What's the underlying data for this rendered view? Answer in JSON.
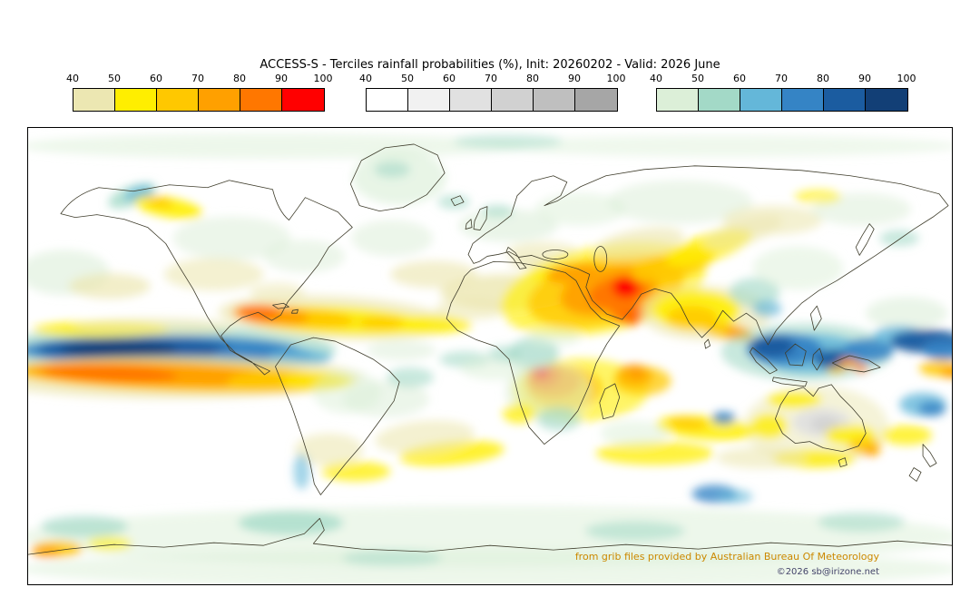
{
  "title": "ACCESS-S - Terciles rainfall probabilities (%), Init: 20260202 - Valid: 2026 June",
  "legends": [
    {
      "key": "d",
      "name": "below-normal-dry-scale",
      "ticks": [
        "40",
        "50",
        "60",
        "70",
        "80",
        "90",
        "100"
      ],
      "colors": [
        "#ece7b2",
        "#ffee00",
        "#ffc800",
        "#ffa000",
        "#ff7700",
        "#ff0000"
      ]
    },
    {
      "key": "n",
      "name": "near-normal-gray-scale",
      "ticks": [
        "40",
        "50",
        "60",
        "70",
        "80",
        "90",
        "100"
      ],
      "colors": [
        "#ffffff",
        "#f1f1f1",
        "#e1e1e1",
        "#d1d1d1",
        "#bfbfbf",
        "#a6a6a6"
      ]
    },
    {
      "key": "w",
      "name": "above-normal-wet-scale",
      "ticks": [
        "40",
        "50",
        "60",
        "70",
        "80",
        "90",
        "100"
      ],
      "colors": [
        "#dcefd8",
        "#a3d9c7",
        "#64b7d9",
        "#3584c5",
        "#1b5ca0",
        "#123f76"
      ]
    }
  ],
  "map": {
    "background": "#ffffff",
    "border_color": "#000000",
    "coastline_color": "#3f3d2c",
    "blobs": [
      [
        "w1",
        300,
        160,
        280,
        14,
        0,
        0.5
      ],
      [
        "w1",
        800,
        160,
        260,
        12,
        0,
        0.45
      ],
      [
        "w2",
        560,
        155,
        60,
        8,
        0,
        0.5
      ],
      [
        "w2",
        180,
        386,
        190,
        28,
        0,
        0.7
      ],
      [
        "w4",
        175,
        386,
        155,
        17,
        0,
        0.9
      ],
      [
        "w5",
        150,
        385,
        110,
        12,
        0,
        1
      ],
      [
        "w6",
        130,
        385,
        65,
        8,
        0,
        1
      ],
      [
        "w4",
        290,
        391,
        55,
        11,
        0,
        0.9
      ],
      [
        "w3",
        330,
        394,
        35,
        9,
        0,
        0.8
      ],
      [
        "d1",
        190,
        416,
        210,
        24,
        0,
        0.7
      ],
      [
        "d3",
        195,
        415,
        185,
        17,
        2,
        0.9
      ],
      [
        "d4",
        170,
        413,
        140,
        12,
        2,
        1
      ],
      [
        "d5",
        120,
        412,
        75,
        9,
        2,
        1
      ],
      [
        "d3",
        295,
        421,
        45,
        11,
        0,
        0.9
      ],
      [
        "d2",
        350,
        420,
        40,
        10,
        0,
        0.7
      ],
      [
        "d2",
        110,
        363,
        75,
        9,
        0,
        0.8
      ],
      [
        "d1",
        170,
        360,
        90,
        10,
        0,
        0.6
      ],
      [
        "w1",
        70,
        300,
        50,
        25,
        0,
        0.6
      ],
      [
        "d1",
        120,
        315,
        45,
        14,
        0,
        0.7
      ],
      [
        "w2",
        145,
        215,
        28,
        11,
        -20,
        0.8
      ],
      [
        "w3",
        152,
        212,
        16,
        7,
        -20,
        0.8
      ],
      [
        "d2",
        185,
        228,
        38,
        11,
        10,
        0.9
      ],
      [
        "d3",
        175,
        222,
        15,
        6,
        10,
        0.8
      ],
      [
        "w1",
        255,
        262,
        65,
        24,
        0,
        0.55
      ],
      [
        "d1",
        235,
        302,
        55,
        18,
        0,
        0.6
      ],
      [
        "w1",
        335,
        282,
        45,
        18,
        0,
        0.55
      ],
      [
        "d1",
        305,
        322,
        30,
        11,
        0,
        0.55
      ],
      [
        "w1",
        440,
        195,
        52,
        30,
        0,
        0.65
      ],
      [
        "w2",
        432,
        186,
        20,
        9,
        0,
        0.6
      ],
      [
        "w1",
        432,
        262,
        45,
        20,
        0,
        0.55
      ],
      [
        "d1",
        478,
        302,
        48,
        15,
        0,
        0.65
      ],
      [
        "w2",
        500,
        222,
        18,
        8,
        0,
        0.6
      ],
      [
        "d1",
        370,
        350,
        130,
        24,
        3,
        0.7
      ],
      [
        "d2",
        370,
        353,
        105,
        15,
        3,
        0.9
      ],
      [
        "d3",
        330,
        350,
        60,
        11,
        4,
        0.95
      ],
      [
        "d4",
        298,
        347,
        42,
        11,
        5,
        1
      ],
      [
        "d5",
        285,
        345,
        22,
        8,
        5,
        1
      ],
      [
        "d2",
        465,
        358,
        55,
        10,
        0,
        0.85
      ],
      [
        "d3",
        420,
        356,
        25,
        7,
        0,
        0.8
      ],
      [
        "w1",
        560,
        248,
        55,
        18,
        0,
        0.6
      ],
      [
        "w2",
        548,
        232,
        18,
        7,
        0,
        0.6
      ],
      [
        "d1",
        598,
        278,
        40,
        12,
        0,
        0.6
      ],
      [
        "d1",
        590,
        290,
        28,
        7,
        0,
        0.7
      ],
      [
        "d1",
        560,
        322,
        75,
        20,
        0,
        0.8
      ],
      [
        "d2",
        612,
        302,
        28,
        8,
        0,
        0.8
      ],
      [
        "d1",
        520,
        340,
        40,
        12,
        0,
        0.6
      ],
      [
        "d2",
        665,
        318,
        115,
        48,
        -12,
        0.65
      ],
      [
        "d3",
        668,
        320,
        88,
        38,
        -12,
        0.8
      ],
      [
        "d4",
        672,
        320,
        55,
        26,
        -12,
        0.95
      ],
      [
        "d5",
        682,
        322,
        34,
        17,
        -12,
        1
      ],
      [
        "d6",
        690,
        316,
        15,
        12,
        0,
        1
      ],
      [
        "d6",
        696,
        349,
        11,
        9,
        0,
        1
      ],
      [
        "d5",
        692,
        344,
        20,
        13,
        0,
        0.9
      ],
      [
        "d4",
        632,
        301,
        30,
        11,
        -5,
        0.9
      ],
      [
        "d3",
        742,
        292,
        48,
        15,
        -15,
        0.85
      ],
      [
        "d2",
        782,
        272,
        50,
        15,
        -18,
        0.8
      ],
      [
        "d1",
        820,
        255,
        45,
        14,
        -18,
        0.6
      ],
      [
        "d1",
        705,
        268,
        50,
        16,
        -10,
        0.65
      ],
      [
        "d2",
        640,
        430,
        75,
        35,
        0,
        0.6
      ],
      [
        "d3",
        622,
        428,
        42,
        24,
        0,
        0.8
      ],
      [
        "d4",
        610,
        420,
        30,
        18,
        0,
        0.95
      ],
      [
        "d5",
        600,
        414,
        18,
        13,
        0,
        1
      ],
      [
        "d6",
        597,
        411,
        8,
        6,
        0,
        1
      ],
      [
        "d5",
        700,
        414,
        20,
        12,
        0,
        0.95
      ],
      [
        "d6",
        702,
        412,
        8,
        5,
        0,
        1
      ],
      [
        "d3",
        708,
        420,
        32,
        16,
        0,
        0.75
      ],
      [
        "w2",
        588,
        390,
        28,
        18,
        0,
        0.7
      ],
      [
        "w1",
        604,
        432,
        48,
        32,
        0,
        0.55
      ],
      [
        "w2",
        616,
        462,
        24,
        13,
        0,
        0.65
      ],
      [
        "d2",
        572,
        456,
        18,
        11,
        0,
        0.75
      ],
      [
        "d1",
        778,
        345,
        72,
        30,
        0,
        0.65
      ],
      [
        "d2",
        768,
        342,
        48,
        22,
        0,
        0.9
      ],
      [
        "d3",
        763,
        350,
        28,
        13,
        0,
        0.85
      ],
      [
        "d3",
        802,
        365,
        28,
        9,
        10,
        0.85
      ],
      [
        "d4",
        815,
        368,
        16,
        7,
        10,
        0.9
      ],
      [
        "w2",
        832,
        322,
        28,
        16,
        0,
        0.65
      ],
      [
        "w3",
        846,
        340,
        16,
        9,
        0,
        0.7
      ],
      [
        "w1",
        880,
        295,
        50,
        24,
        0,
        0.5
      ],
      [
        "w2",
        890,
        388,
        95,
        32,
        0,
        0.6
      ],
      [
        "w3",
        895,
        390,
        60,
        22,
        0,
        0.85
      ],
      [
        "w4",
        865,
        385,
        42,
        18,
        0,
        0.95
      ],
      [
        "w5",
        852,
        382,
        25,
        12,
        0,
        1
      ],
      [
        "w5",
        920,
        396,
        22,
        11,
        0,
        0.95
      ],
      [
        "w4",
        958,
        386,
        28,
        13,
        0,
        0.9
      ],
      [
        "d4",
        936,
        400,
        11,
        5,
        0,
        0.95
      ],
      [
        "d5",
        950,
        406,
        7,
        4,
        0,
        0.95
      ],
      [
        "d3",
        922,
        408,
        10,
        4,
        0,
        0.8
      ],
      [
        "w1",
        1000,
        345,
        45,
        18,
        0,
        0.6
      ],
      [
        "w3",
        992,
        370,
        28,
        11,
        0,
        0.85
      ],
      [
        "w5",
        1022,
        376,
        40,
        13,
        0,
        0.95
      ],
      [
        "w4",
        1042,
        386,
        25,
        11,
        0,
        0.9
      ],
      [
        "d3",
        1038,
        406,
        24,
        9,
        0,
        0.85
      ],
      [
        "d4",
        1050,
        411,
        13,
        6,
        0,
        0.9
      ],
      [
        "d1",
        900,
        470,
        80,
        45,
        0,
        0.5
      ],
      [
        "n3",
        906,
        466,
        32,
        16,
        0,
        0.9
      ],
      [
        "n4",
        910,
        468,
        16,
        9,
        0,
        0.85
      ],
      [
        "d2",
        876,
        441,
        30,
        9,
        0,
        0.85
      ],
      [
        "d2",
        848,
        470,
        20,
        14,
        0,
        0.8
      ],
      [
        "d2",
        938,
        480,
        28,
        11,
        0,
        0.85
      ],
      [
        "d3",
        954,
        492,
        18,
        9,
        0,
        0.9
      ],
      [
        "d4",
        961,
        498,
        9,
        5,
        0,
        0.9
      ],
      [
        "d2",
        898,
        506,
        45,
        10,
        0,
        0.8
      ],
      [
        "d2",
        1000,
        480,
        28,
        11,
        0,
        0.75
      ],
      [
        "w3",
        1018,
        446,
        26,
        13,
        0,
        0.8
      ],
      [
        "w4",
        1028,
        451,
        15,
        8,
        0,
        0.85
      ],
      [
        "d2",
        778,
        472,
        55,
        13,
        5,
        0.85
      ],
      [
        "d3",
        758,
        467,
        22,
        7,
        5,
        0.8
      ],
      [
        "w4",
        798,
        461,
        13,
        7,
        0,
        0.85
      ],
      [
        "d2",
        722,
        500,
        65,
        13,
        0,
        0.75
      ],
      [
        "w1",
        700,
        478,
        38,
        14,
        0,
        0.5
      ],
      [
        "d1",
        840,
        505,
        50,
        12,
        0,
        0.6
      ],
      [
        "d2",
        498,
        500,
        58,
        13,
        -5,
        0.8
      ],
      [
        "d1",
        468,
        482,
        55,
        18,
        -5,
        0.6
      ],
      [
        "w1",
        425,
        440,
        48,
        20,
        0,
        0.55
      ],
      [
        "w2",
        452,
        416,
        26,
        11,
        0,
        0.6
      ],
      [
        "w2",
        512,
        396,
        28,
        9,
        0,
        0.6
      ],
      [
        "w1",
        545,
        406,
        38,
        13,
        0,
        0.5
      ],
      [
        "w1",
        442,
        386,
        38,
        11,
        0,
        0.55
      ],
      [
        "d2",
        392,
        520,
        38,
        11,
        0,
        0.75
      ],
      [
        "d1",
        362,
        496,
        38,
        18,
        0,
        0.6
      ],
      [
        "w1",
        382,
        432,
        38,
        24,
        0,
        0.5
      ],
      [
        "w3",
        332,
        520,
        9,
        20,
        0,
        0.6
      ],
      [
        "w4",
        788,
        545,
        25,
        10,
        0,
        0.8
      ],
      [
        "w3",
        810,
        548,
        20,
        8,
        0,
        0.6
      ],
      [
        "w1",
        540,
        592,
        520,
        34,
        0,
        0.5
      ],
      [
        "w1",
        540,
        628,
        520,
        22,
        0,
        0.5
      ],
      [
        "w2",
        320,
        577,
        58,
        13,
        0,
        0.75
      ],
      [
        "w2",
        92,
        581,
        48,
        12,
        0,
        0.65
      ],
      [
        "w2",
        700,
        586,
        55,
        11,
        0,
        0.55
      ],
      [
        "w2",
        950,
        576,
        48,
        11,
        0,
        0.55
      ],
      [
        "w2",
        432,
        616,
        55,
        9,
        0,
        0.5
      ],
      [
        "d3",
        62,
        606,
        28,
        9,
        0,
        0.9
      ],
      [
        "d4",
        50,
        609,
        16,
        6,
        0,
        0.9
      ],
      [
        "d2",
        120,
        600,
        25,
        8,
        0,
        0.6
      ],
      [
        "w1",
        750,
        222,
        80,
        24,
        0,
        0.55
      ],
      [
        "d1",
        852,
        242,
        55,
        16,
        0,
        0.6
      ],
      [
        "w1",
        950,
        230,
        55,
        18,
        0,
        0.55
      ],
      [
        "w2",
        992,
        262,
        22,
        9,
        0,
        0.6
      ],
      [
        "d2",
        902,
        216,
        26,
        8,
        0,
        0.6
      ],
      [
        "w1",
        640,
        230,
        50,
        18,
        0,
        0.5
      ],
      [
        "w2",
        556,
        390,
        18,
        9,
        0,
        0.6
      ],
      [
        "w1",
        610,
        372,
        30,
        10,
        0,
        0.5
      ]
    ]
  },
  "footer": {
    "credit": "from grib files provided by Australian Bureau Of Meteorology",
    "credit_color": "#cc8800",
    "copyright": "©2026 sb@irizone.net",
    "copyright_color": "#44446a"
  }
}
